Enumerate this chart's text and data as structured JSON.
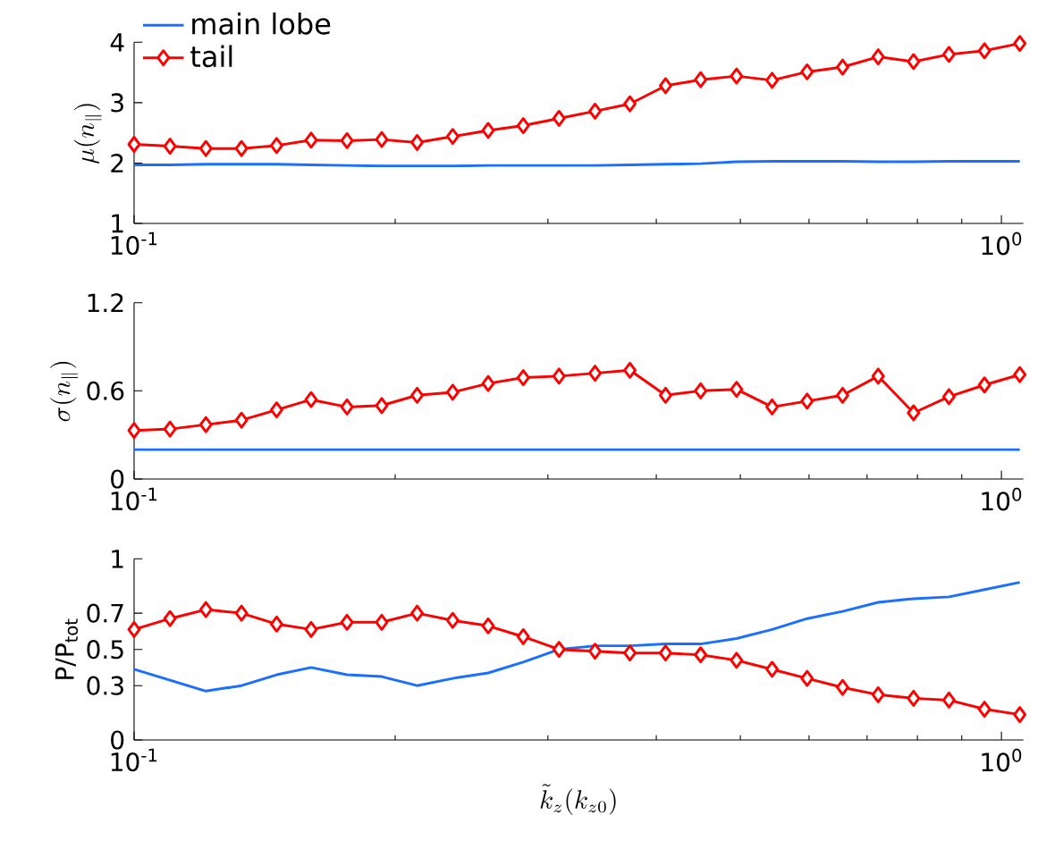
{
  "chart_data": [
    {
      "type": "line",
      "ylabel": "\\mu(n_\\parallel)",
      "log": "x",
      "legend": "top left",
      "grid": false,
      "xlim": [
        0.1,
        1.06
      ],
      "ylim": [
        1,
        4
      ],
      "yticks": [
        1,
        2,
        3,
        4
      ],
      "xticks": [
        {
          "value": 0.1,
          "label": "10$^{-1}$"
        },
        {
          "value": 0.2,
          "label": null
        },
        {
          "value": 0.3,
          "label": null
        },
        {
          "value": 0.4,
          "label": null
        },
        {
          "value": 0.5,
          "label": null
        },
        {
          "value": 0.6,
          "label": null
        },
        {
          "value": 0.7,
          "label": null
        },
        {
          "value": 0.8,
          "label": null
        },
        {
          "value": 0.9,
          "label": null
        },
        {
          "value": 1,
          "label": "10$^{0}$"
        }
      ],
      "x": [
        0.1,
        0.11,
        0.121,
        0.133,
        0.146,
        0.16,
        0.176,
        0.193,
        0.212,
        0.233,
        0.256,
        0.281,
        0.309,
        0.34,
        0.373,
        0.41,
        0.45,
        0.495,
        0.544,
        0.597,
        0.656,
        0.721,
        0.792,
        0.87,
        0.956,
        1.05
      ],
      "series": [
        {
          "name": "main lobe",
          "color": "#1a6fff",
          "marker": "none",
          "line_style": "solid",
          "values": [
            1.97,
            1.97,
            1.98,
            1.98,
            1.98,
            1.97,
            1.96,
            1.95,
            1.95,
            1.95,
            1.96,
            1.96,
            1.96,
            1.96,
            1.97,
            1.98,
            1.99,
            2.02,
            2.03,
            2.03,
            2.03,
            2.02,
            2.02,
            2.03,
            2.03,
            2.03
          ]
        },
        {
          "name": "tail",
          "color": "#ff0000",
          "marker": "diamond",
          "line_style": "solid",
          "values": [
            2.31,
            2.28,
            2.24,
            2.24,
            2.29,
            2.38,
            2.37,
            2.39,
            2.34,
            2.44,
            2.54,
            2.62,
            2.74,
            2.86,
            2.98,
            3.28,
            3.38,
            3.44,
            3.37,
            3.51,
            3.59,
            3.76,
            3.68,
            3.8,
            3.86,
            3.98
          ]
        }
      ]
    },
    {
      "type": "line",
      "ylabel": "\\sigma(n_\\parallel)",
      "log": "x",
      "grid": false,
      "xlim": [
        0.1,
        1.06
      ],
      "ylim": [
        0,
        1.2
      ],
      "yticks": [
        0,
        0.6,
        1.2
      ],
      "xticks": [
        {
          "value": 0.1,
          "label": "10$^{-1}$"
        },
        {
          "value": 0.2,
          "label": null
        },
        {
          "value": 0.3,
          "label": null
        },
        {
          "value": 0.4,
          "label": null
        },
        {
          "value": 0.5,
          "label": null
        },
        {
          "value": 0.6,
          "label": null
        },
        {
          "value": 0.7,
          "label": null
        },
        {
          "value": 0.8,
          "label": null
        },
        {
          "value": 0.9,
          "label": null
        },
        {
          "value": 1,
          "label": "10$^{0}$"
        }
      ],
      "x": [
        0.1,
        0.11,
        0.121,
        0.133,
        0.146,
        0.16,
        0.176,
        0.193,
        0.212,
        0.233,
        0.256,
        0.281,
        0.309,
        0.34,
        0.373,
        0.41,
        0.45,
        0.495,
        0.544,
        0.597,
        0.656,
        0.721,
        0.792,
        0.87,
        0.956,
        1.05
      ],
      "series": [
        {
          "color": "#1a6fff",
          "marker": "none",
          "line_style": "solid",
          "values": [
            0.2,
            0.2,
            0.2,
            0.2,
            0.2,
            0.2,
            0.2,
            0.2,
            0.2,
            0.2,
            0.2,
            0.2,
            0.2,
            0.2,
            0.2,
            0.2,
            0.2,
            0.2,
            0.2,
            0.2,
            0.2,
            0.2,
            0.2,
            0.2,
            0.2,
            0.2
          ]
        },
        {
          "color": "#ff0000",
          "marker": "diamond",
          "line_style": "solid",
          "values": [
            0.33,
            0.34,
            0.37,
            0.4,
            0.47,
            0.54,
            0.49,
            0.5,
            0.57,
            0.59,
            0.65,
            0.69,
            0.7,
            0.72,
            0.74,
            0.57,
            0.6,
            0.61,
            0.49,
            0.53,
            0.57,
            0.7,
            0.45,
            0.56,
            0.64,
            0.71
          ]
        }
      ]
    },
    {
      "type": "line",
      "ylabel": "P/P$_{tot}$",
      "xlabel": "\\tilde{k}_z(k_{z0})",
      "log": "x",
      "grid": false,
      "xlim": [
        0.1,
        1.06
      ],
      "ylim": [
        0,
        1
      ],
      "yticks": [
        0,
        0.3,
        0.5,
        0.7,
        1
      ],
      "xticks": [
        {
          "value": 0.1,
          "label": "10$^{-1}$"
        },
        {
          "value": 0.2,
          "label": null
        },
        {
          "value": 0.3,
          "label": null
        },
        {
          "value": 0.4,
          "label": null
        },
        {
          "value": 0.5,
          "label": null
        },
        {
          "value": 0.6,
          "label": null
        },
        {
          "value": 0.7,
          "label": null
        },
        {
          "value": 0.8,
          "label": null
        },
        {
          "value": 0.9,
          "label": null
        },
        {
          "value": 1,
          "label": "10$^{0}$"
        }
      ],
      "x": [
        0.1,
        0.11,
        0.121,
        0.133,
        0.146,
        0.16,
        0.176,
        0.193,
        0.212,
        0.233,
        0.256,
        0.281,
        0.309,
        0.34,
        0.373,
        0.41,
        0.45,
        0.495,
        0.544,
        0.597,
        0.656,
        0.721,
        0.792,
        0.87,
        0.956,
        1.05
      ],
      "series": [
        {
          "color": "#1a6fff",
          "marker": "none",
          "line_style": "solid",
          "values": [
            0.39,
            0.33,
            0.27,
            0.3,
            0.36,
            0.4,
            0.36,
            0.35,
            0.3,
            0.34,
            0.37,
            0.43,
            0.5,
            0.52,
            0.52,
            0.53,
            0.53,
            0.56,
            0.61,
            0.67,
            0.71,
            0.76,
            0.78,
            0.79,
            0.83,
            0.87
          ]
        },
        {
          "color": "#ff0000",
          "marker": "diamond",
          "line_style": "solid",
          "values": [
            0.61,
            0.67,
            0.72,
            0.7,
            0.64,
            0.61,
            0.65,
            0.65,
            0.7,
            0.66,
            0.63,
            0.57,
            0.5,
            0.49,
            0.48,
            0.48,
            0.47,
            0.44,
            0.39,
            0.34,
            0.29,
            0.25,
            0.23,
            0.22,
            0.17,
            0.14
          ]
        }
      ]
    }
  ]
}
